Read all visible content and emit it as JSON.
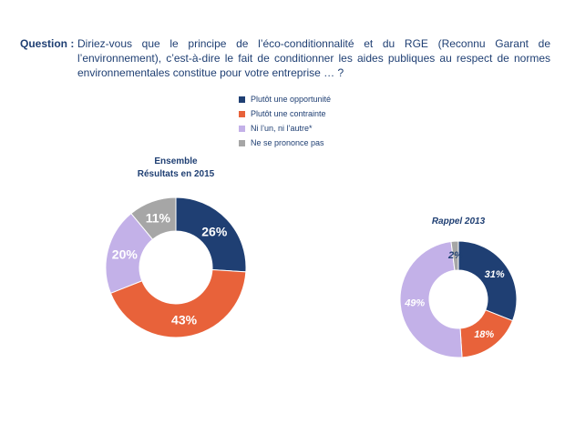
{
  "question": {
    "label": "Question :",
    "text": "Diriez-vous que le principe de l’éco-conditionnalité et du RGE (Reconnu Garant de l’environnement), c’est-à-dire le fait de conditionner les aides publiques au respect de normes environnementales constitue pour votre entreprise … ?"
  },
  "legend": [
    {
      "label": "Plutôt une opportunité",
      "color": "#1f3f73"
    },
    {
      "label": "Plutôt une contrainte",
      "color": "#e8623a"
    },
    {
      "label": "Ni l’un, ni l’autre*",
      "color": "#c3b1e8"
    },
    {
      "label": "Ne se prononce pas",
      "color": "#a6a6a6"
    }
  ],
  "chart_data": [
    {
      "type": "pie",
      "variant": "donut",
      "title_lines": [
        "Ensemble",
        "Résultats en 2015"
      ],
      "categories": [
        "Plutôt une opportunité",
        "Plutôt une contrainte",
        "Ni l’un, ni l’autre*",
        "Ne se prononce pas"
      ],
      "values": [
        26,
        43,
        20,
        11
      ],
      "labels": [
        "26%",
        "43%",
        "20%",
        "11%"
      ],
      "colors": [
        "#1f3f73",
        "#e8623a",
        "#c3b1e8",
        "#a6a6a6"
      ]
    },
    {
      "type": "pie",
      "variant": "donut",
      "title_lines": [
        "Rappel 2013"
      ],
      "categories": [
        "Plutôt une opportunité",
        "Plutôt une contrainte",
        "Ni l’un, ni l’autre*",
        "Ne se prononce pas"
      ],
      "values": [
        31,
        18,
        49,
        2
      ],
      "labels": [
        "31%",
        "18%",
        "49%",
        "2%"
      ],
      "colors": [
        "#1f3f73",
        "#e8623a",
        "#c3b1e8",
        "#a6a6a6"
      ],
      "label_colors": [
        "#ffffff",
        "#ffffff",
        "#ffffff",
        "#1f3f73"
      ]
    }
  ]
}
